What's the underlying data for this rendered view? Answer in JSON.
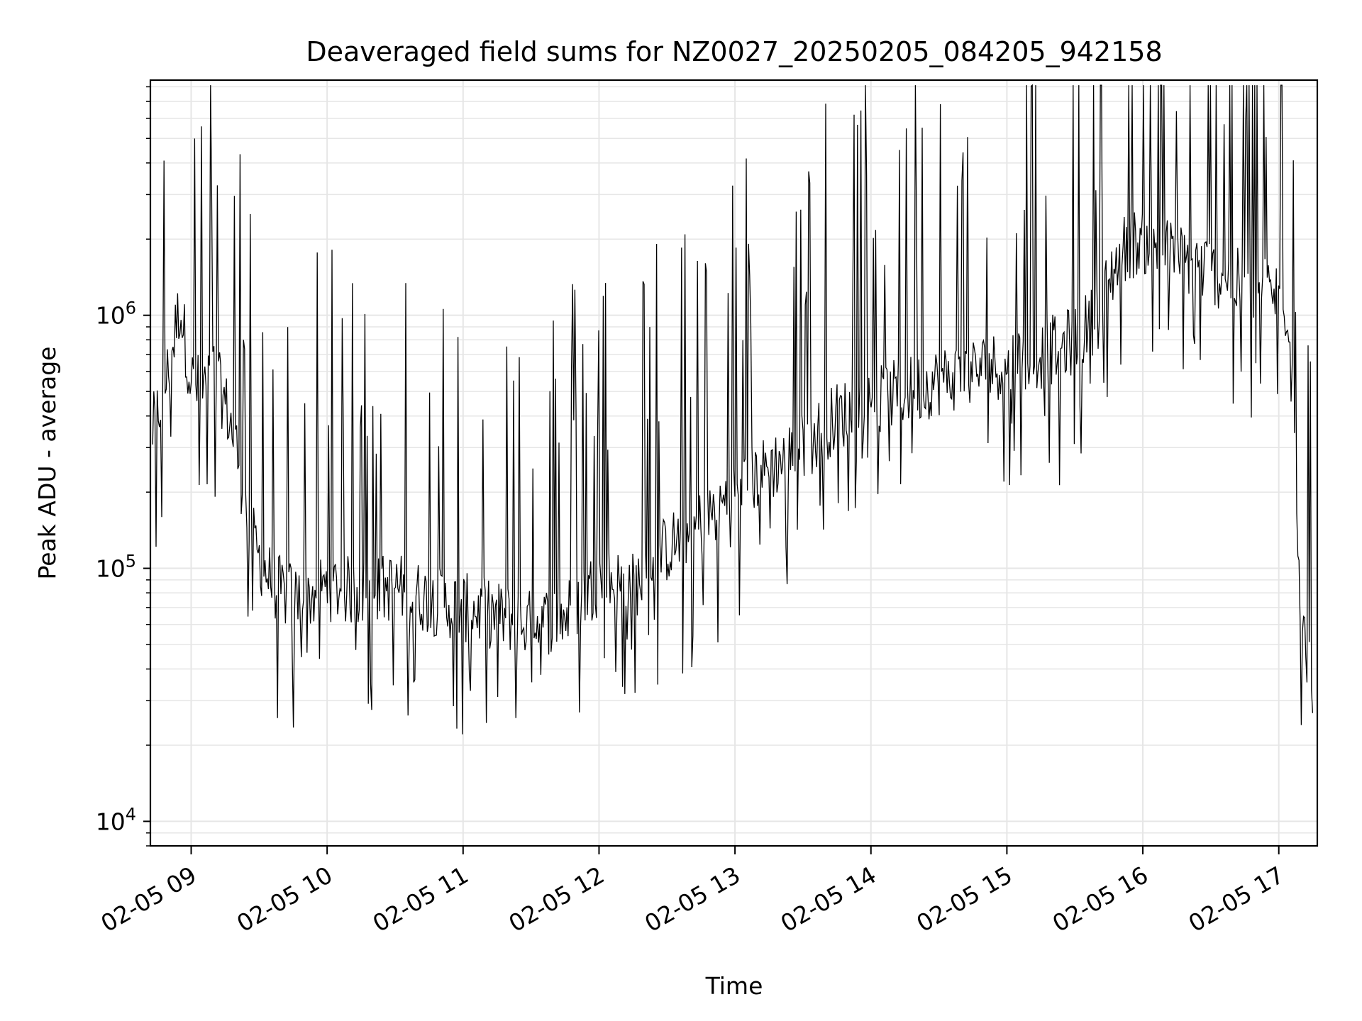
{
  "chart_data": {
    "type": "line",
    "title": "Deaveraged field sums for NZ0027_20250205_084205_942158",
    "xlabel": "Time",
    "ylabel": "Peak ADU - average",
    "yscale": "log",
    "ylim": [
      8000,
      8500000
    ],
    "xlim": [
      "2025-02-05 08:42",
      "2025-02-05 17:17"
    ],
    "grid": true,
    "x_ticks": [
      "02-05 09",
      "02-05 10",
      "02-05 11",
      "02-05 12",
      "02-05 13",
      "02-05 14",
      "02-05 15",
      "02-05 16",
      "02-05 17"
    ],
    "y_ticks": [
      {
        "mantissa": "10",
        "exp": "4"
      },
      {
        "mantissa": "10",
        "exp": "5"
      },
      {
        "mantissa": "10",
        "exp": "6"
      }
    ],
    "series": [
      {
        "color": "#000000",
        "x": [
          "2025-02-05 08:43",
          "2025-02-05 08:50",
          "2025-02-05 08:55",
          "2025-02-05 09:00",
          "2025-02-05 09:05",
          "2025-02-05 09:10",
          "2025-02-05 09:15",
          "2025-02-05 09:20",
          "2025-02-05 09:25",
          "2025-02-05 09:30",
          "2025-02-05 09:35",
          "2025-02-05 09:40",
          "2025-02-05 09:50",
          "2025-02-05 10:00",
          "2025-02-05 10:15",
          "2025-02-05 10:30",
          "2025-02-05 10:45",
          "2025-02-05 11:00",
          "2025-02-05 11:15",
          "2025-02-05 11:30",
          "2025-02-05 11:45",
          "2025-02-05 12:00",
          "2025-02-05 12:15",
          "2025-02-05 12:30",
          "2025-02-05 12:45",
          "2025-02-05 13:00",
          "2025-02-05 13:15",
          "2025-02-05 13:30",
          "2025-02-05 13:45",
          "2025-02-05 14:00",
          "2025-02-05 14:15",
          "2025-02-05 14:30",
          "2025-02-05 14:45",
          "2025-02-05 15:00",
          "2025-02-05 15:15",
          "2025-02-05 15:30",
          "2025-02-05 15:40",
          "2025-02-05 15:50",
          "2025-02-05 16:00",
          "2025-02-05 16:15",
          "2025-02-05 16:30",
          "2025-02-05 16:45",
          "2025-02-05 17:00",
          "2025-02-05 17:05",
          "2025-02-05 17:10",
          "2025-02-05 17:15"
        ],
        "y": [
          350000,
          600000,
          1100000,
          550000,
          500000,
          600000,
          450000,
          300000,
          150000,
          110000,
          90000,
          80000,
          75000,
          85000,
          80000,
          85000,
          75000,
          70000,
          65000,
          60000,
          65000,
          90000,
          85000,
          120000,
          150000,
          200000,
          250000,
          300000,
          400000,
          450000,
          500000,
          550000,
          600000,
          650000,
          700000,
          800000,
          1000000,
          1800000,
          2000000,
          1700000,
          1500000,
          1300000,
          1200000,
          1000000,
          60000,
          35000
        ]
      }
    ]
  }
}
